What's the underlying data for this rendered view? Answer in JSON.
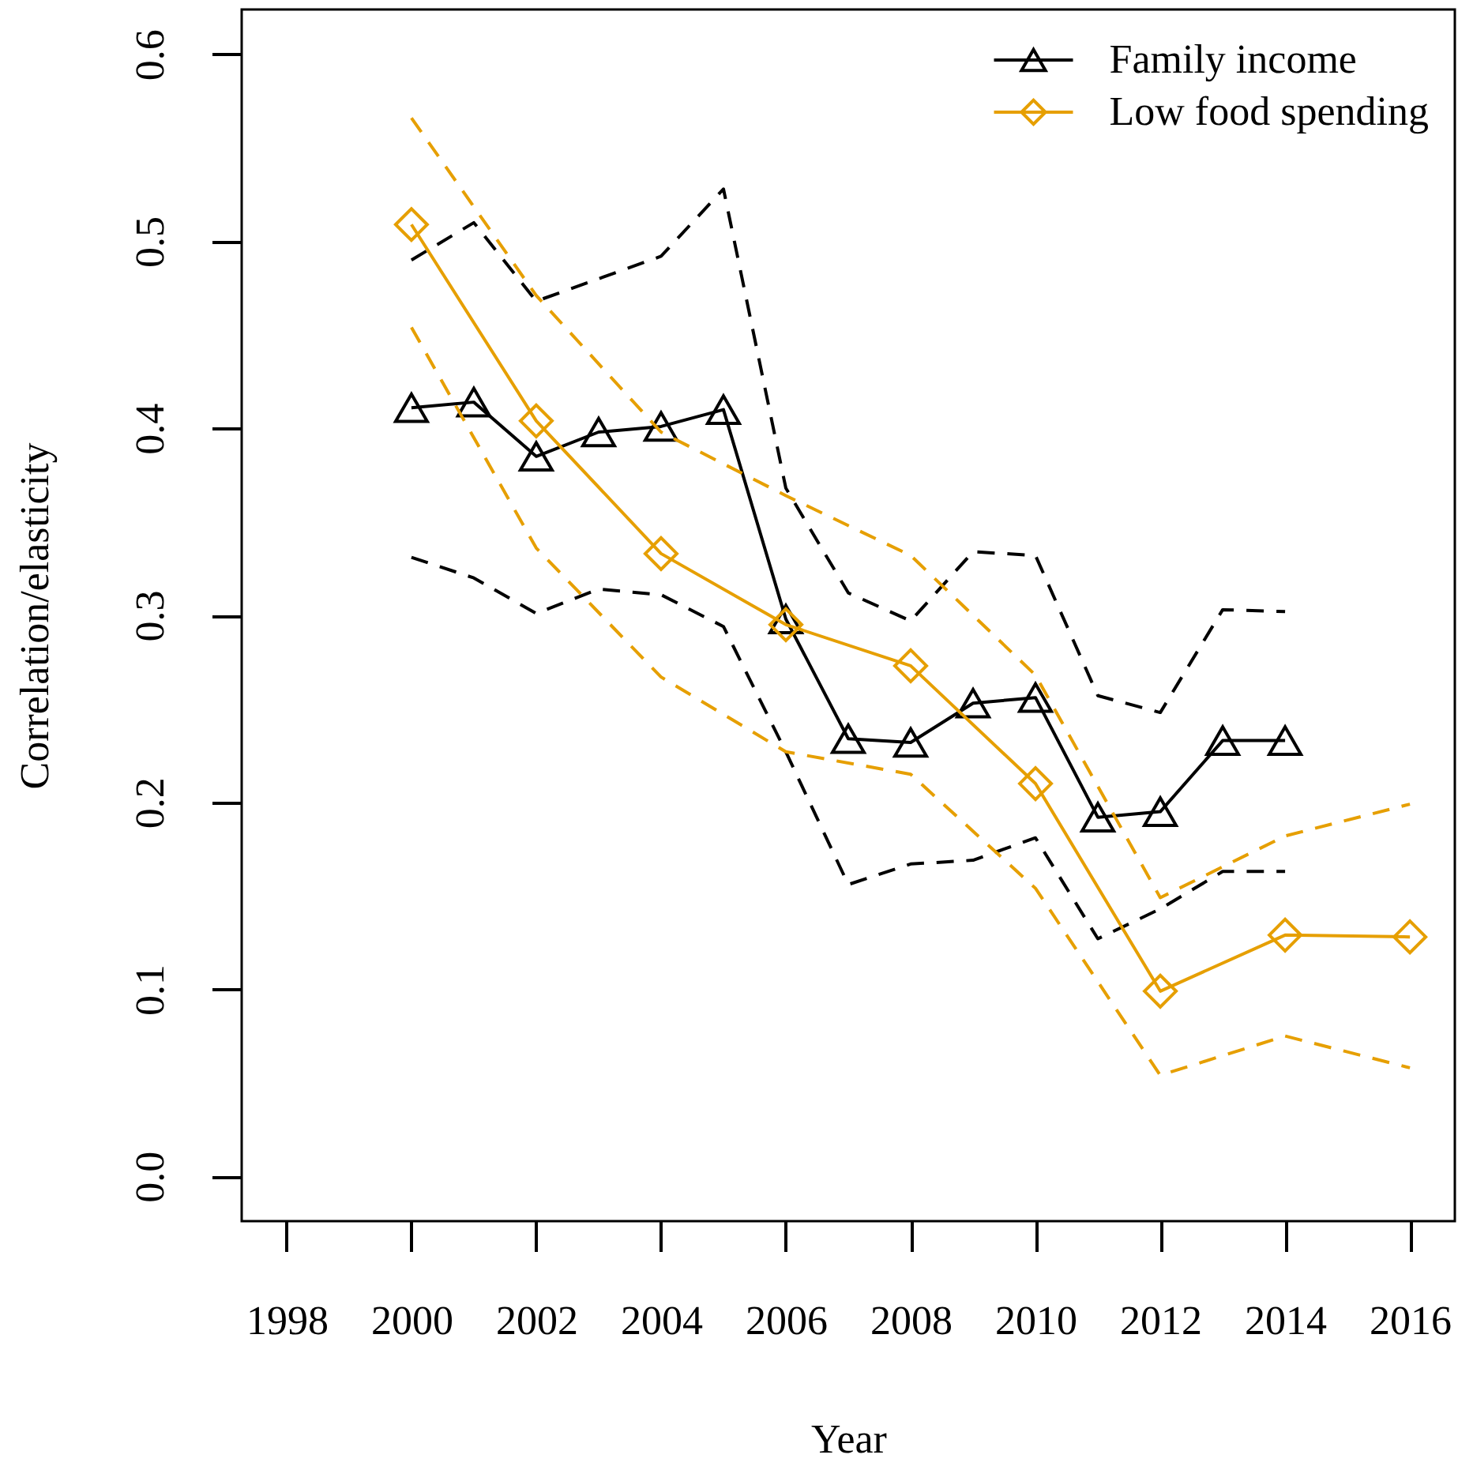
{
  "chart_data": {
    "type": "line",
    "xlabel": "Year",
    "ylabel": "Correlation/elasticity",
    "xlim": [
      1997.28,
      2016.72
    ],
    "ylim": [
      -0.024,
      0.624
    ],
    "xticks": [
      1998,
      2000,
      2002,
      2004,
      2006,
      2008,
      2010,
      2012,
      2014,
      2016
    ],
    "yticks": [
      {
        "value": 0,
        "label": "0.0"
      },
      0.1,
      0.2,
      0.3,
      0.4,
      0.5,
      0.6
    ],
    "legend": "top right",
    "series": [
      {
        "name": "Family income",
        "color": "#000000",
        "marker": "triangle",
        "line_style": "solid",
        "x": [
          2000,
          2001,
          2002,
          2003,
          2004,
          2005,
          2006,
          2007,
          2008,
          2009,
          2010,
          2011,
          2012,
          2013,
          2014
        ],
        "values": [
          0.411,
          0.414,
          0.385,
          0.398,
          0.401,
          0.41,
          0.298,
          0.234,
          0.232,
          0.253,
          0.256,
          0.192,
          0.195,
          0.233,
          0.233
        ]
      },
      {
        "color": "#000000",
        "marker": "none",
        "line_style": "dashed",
        "x": [
          2000,
          2001,
          2002,
          2003,
          2004,
          2005,
          2006,
          2007,
          2008,
          2009,
          2010,
          2011,
          2012,
          2013,
          2014
        ],
        "values": [
          0.49,
          0.51,
          0.468,
          0.48,
          0.492,
          0.528,
          0.368,
          0.312,
          0.297,
          0.334,
          0.332,
          0.257,
          0.248,
          0.303,
          0.302
        ]
      },
      {
        "color": "#000000",
        "marker": "none",
        "line_style": "dashed",
        "x": [
          2000,
          2001,
          2002,
          2003,
          2004,
          2005,
          2006,
          2007,
          2008,
          2009,
          2010,
          2011,
          2012,
          2013,
          2014
        ],
        "values": [
          0.331,
          0.32,
          0.301,
          0.314,
          0.311,
          0.294,
          0.227,
          0.156,
          0.167,
          0.169,
          0.181,
          0.127,
          0.143,
          0.163,
          0.163
        ]
      },
      {
        "name": "Low food spending",
        "color": "#e69f00",
        "marker": "diamond",
        "line_style": "solid",
        "x": [
          2000,
          2002,
          2004,
          2006,
          2008,
          2010,
          2012,
          2014,
          2016
        ],
        "values": [
          0.509,
          0.404,
          0.333,
          0.295,
          0.273,
          0.21,
          0.099,
          0.129,
          0.128
        ]
      },
      {
        "color": "#e69f00",
        "marker": "none",
        "line_style": "dashed",
        "x": [
          2000,
          2002,
          2004,
          2006,
          2008,
          2010,
          2012,
          2014,
          2016
        ],
        "values": [
          0.566,
          0.471,
          0.398,
          0.364,
          0.332,
          0.268,
          0.149,
          0.182,
          0.199
        ]
      },
      {
        "color": "#e69f00",
        "marker": "none",
        "line_style": "dashed",
        "x": [
          2000,
          2002,
          2004,
          2006,
          2008,
          2010,
          2012,
          2014,
          2016
        ],
        "values": [
          0.454,
          0.336,
          0.267,
          0.227,
          0.215,
          0.154,
          0.054,
          0.075,
          0.058
        ]
      }
    ]
  }
}
